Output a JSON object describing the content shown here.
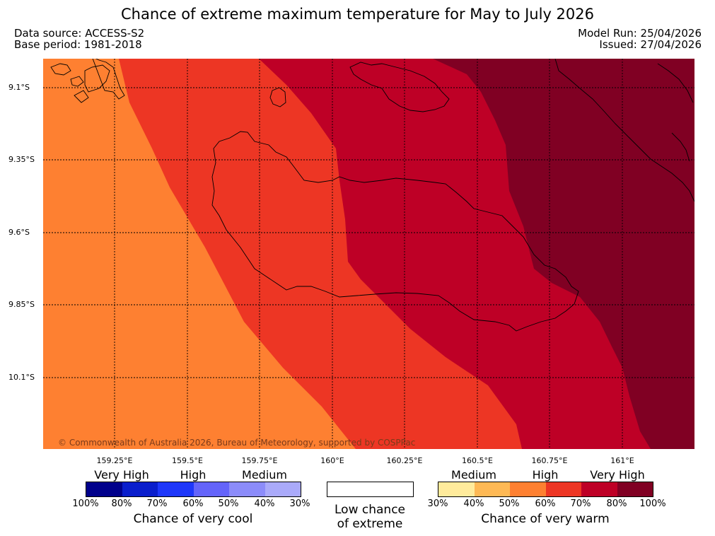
{
  "title": "Chance of extreme maximum temperature for May to July 2026",
  "meta": {
    "data_source": "Data source: ACCESS-S2",
    "base_period": "Base period: 1981-2018",
    "model_run": "Model Run: 25/04/2026",
    "issued": "Issued: 27/04/2026"
  },
  "map": {
    "lon_labels": [
      "159.25°E",
      "159.5°E",
      "159.75°E",
      "160°E",
      "160.25°E",
      "160.5°E",
      "160.75°E",
      "161°E"
    ],
    "lat_labels": [
      "9.1°S",
      "9.35°S",
      "9.6°S",
      "9.85°S",
      "10.1°S"
    ],
    "copyright": "© Commonwealth of Australia 2026, Bureau of Meteorology, supported by COSPPac",
    "zone_colors": [
      "#fe8031",
      "#ed3624",
      "#be0026",
      "#800023"
    ]
  },
  "legend": {
    "cool": {
      "categories": [
        "Very High",
        "High",
        "Medium"
      ],
      "colors": [
        "#00008b",
        "#0a1ecc",
        "#1e37fa",
        "#6464fa",
        "#8c8cfa",
        "#aaaafa"
      ],
      "ticks": [
        "100%",
        "80%",
        "70%",
        "60%",
        "50%",
        "40%",
        "30%"
      ],
      "title": "Chance of very cool"
    },
    "low": {
      "title_line1": "Low chance",
      "title_line2": "of extreme"
    },
    "warm": {
      "categories": [
        "Medium",
        "High",
        "Very High"
      ],
      "colors": [
        "#ffeb9c",
        "#feb955",
        "#fe8031",
        "#ed3624",
        "#be0026",
        "#800023"
      ],
      "ticks": [
        "30%",
        "40%",
        "50%",
        "60%",
        "70%",
        "80%",
        "100%"
      ],
      "title": "Chance of very warm"
    }
  }
}
